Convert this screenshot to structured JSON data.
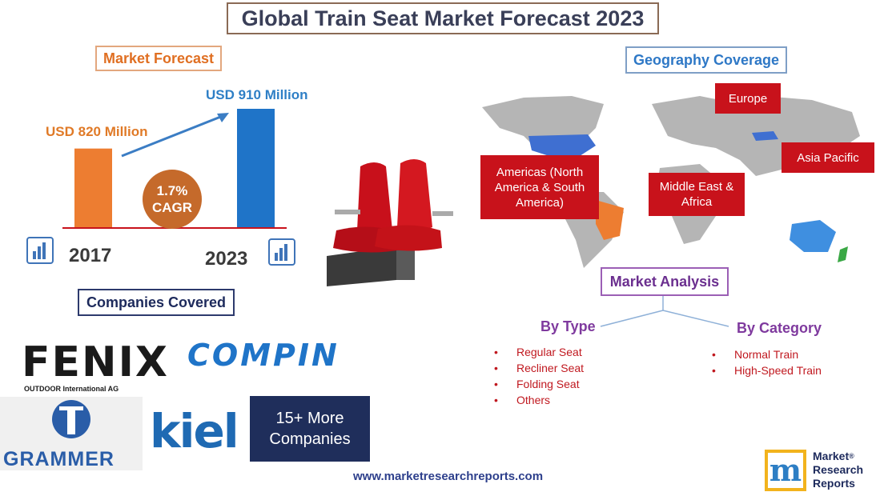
{
  "title": "Global Train Seat Market Forecast 2023",
  "market_forecast": {
    "heading": "Market Forecast",
    "start_value_label": "USD 820 Million",
    "end_value_label": "USD 910 Million",
    "start_year": "2017",
    "end_year": "2023",
    "cagr_value": "1.7%",
    "cagr_label": "CAGR",
    "start_value": 820,
    "end_value": 910,
    "start_color": "#ed7d31",
    "end_color": "#1f74c8"
  },
  "geography": {
    "heading": "Geography Coverage",
    "regions": [
      "Europe",
      "Americas (North America & South America)",
      "Middle East & Africa",
      "Asia Pacific"
    ],
    "region_color": "#c8121b"
  },
  "market_analysis": {
    "heading": "Market Analysis",
    "by_type": {
      "heading": "By Type",
      "items": [
        "Regular Seat",
        "Recliner Seat",
        "Folding Seat",
        "Others"
      ]
    },
    "by_category": {
      "heading": "By Category",
      "items": [
        "Normal Train",
        "High-Speed Train"
      ]
    }
  },
  "companies": {
    "heading": "Companies Covered",
    "logos": [
      "FENIX",
      "OUTDOOR International AG",
      "COMPIN",
      "GRAMMER",
      "kiel"
    ],
    "more_line1": "15+ More",
    "more_line2": "Companies"
  },
  "footer_url": "www.marketresearchreports.com",
  "brand_logo": {
    "letter": "m",
    "line1": "Market",
    "line2": "Research",
    "line3": "Reports",
    "reg": "®"
  }
}
